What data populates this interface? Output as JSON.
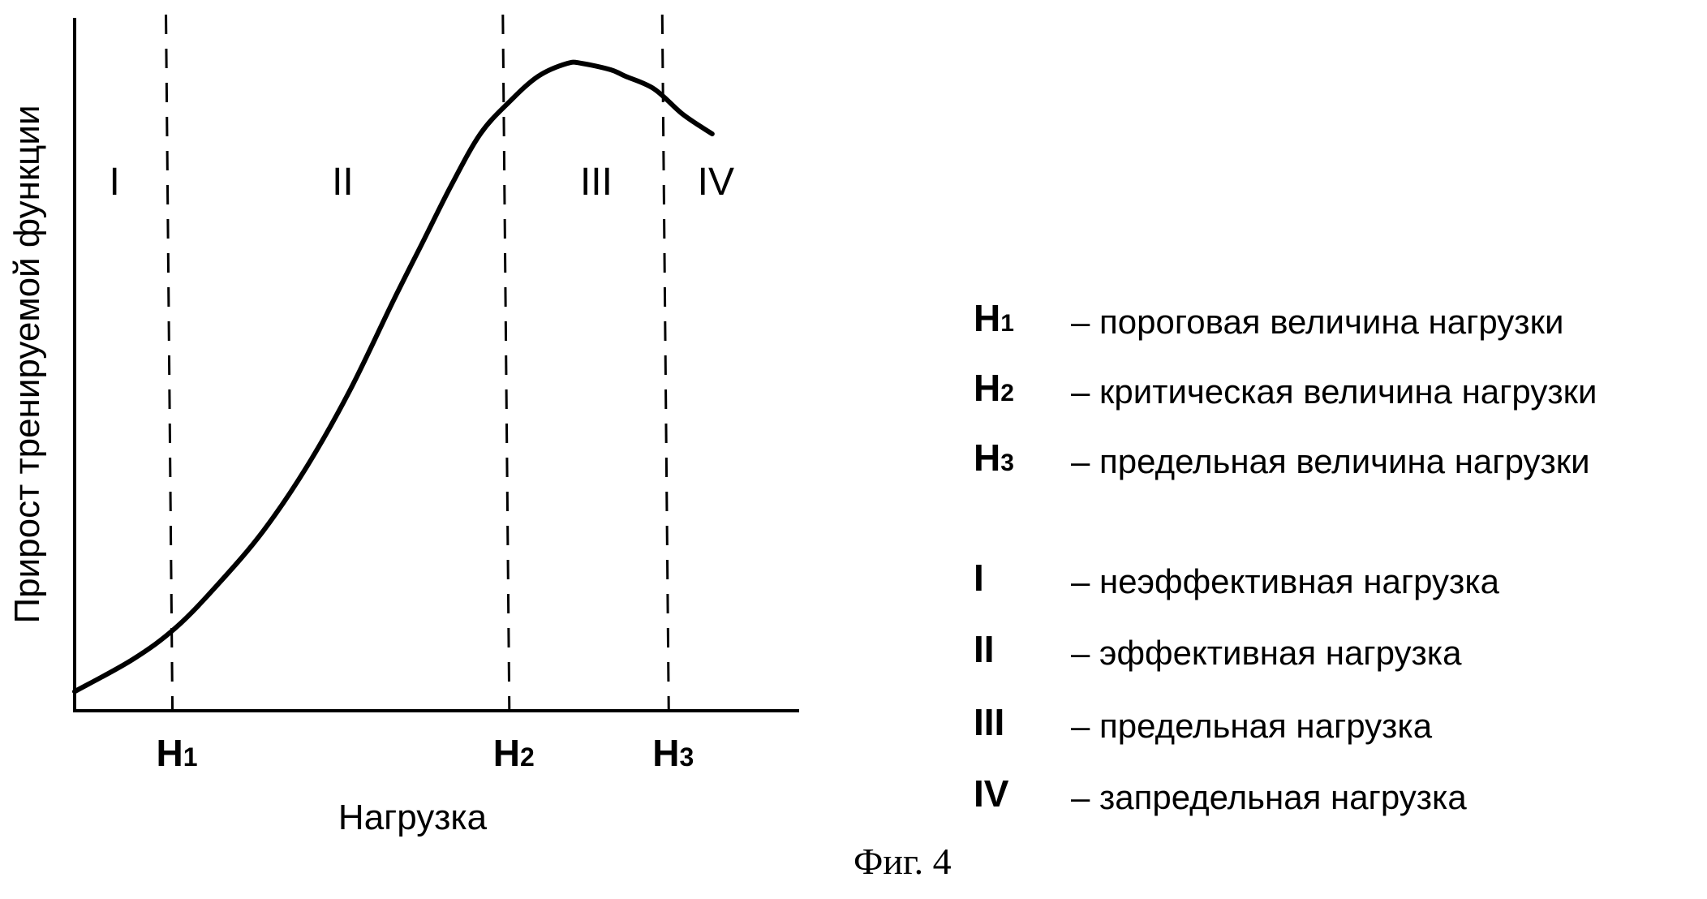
{
  "chart_data": {
    "type": "line",
    "xlabel": "Нагрузка",
    "ylabel": "Прирост тренируемой функции",
    "xlim": [
      0,
      100
    ],
    "ylim": [
      0,
      100
    ],
    "series": [
      {
        "x": [
          0,
          8,
          14,
          20,
          26,
          32,
          38,
          44,
          48,
          52,
          56,
          60,
          64,
          68,
          70,
          74,
          76,
          80,
          84,
          88
        ],
        "values": [
          3,
          8,
          13,
          20,
          28,
          38,
          50,
          64,
          73,
          82,
          90,
          95,
          99,
          101,
          101,
          100,
          99,
          97,
          93,
          90
        ]
      }
    ],
    "thresholds": [
      {
        "label": "H",
        "sub": "1",
        "x": 13.5
      },
      {
        "label": "H",
        "sub": "2",
        "x": 60
      },
      {
        "label": "H",
        "sub": "3",
        "x": 82
      }
    ],
    "zones": [
      {
        "label": "I",
        "x": 5.5
      },
      {
        "label": "II",
        "x": 37
      },
      {
        "label": "III",
        "x": 72
      },
      {
        "label": "IV",
        "x": 88.5
      }
    ],
    "grid": false,
    "legend_position": "right"
  },
  "legend": [
    {
      "key": "H",
      "sub": "1",
      "desc": "– пороговая величина нагрузки"
    },
    {
      "key": "H",
      "sub": "2",
      "desc": "– критическая величина нагрузки"
    },
    {
      "key": "H",
      "sub": "3",
      "desc": "– предельная величина нагрузки"
    },
    {
      "key": "I",
      "sub": "",
      "desc": "– неэффективная нагрузка"
    },
    {
      "key": "II",
      "sub": "",
      "desc": "– эффективная нагрузка"
    },
    {
      "key": "III",
      "sub": "",
      "desc": "– предельная  нагрузка"
    },
    {
      "key": "IV",
      "sub": "",
      "desc": "– запредельная нагрузка"
    }
  ],
  "caption": "Фиг. 4"
}
